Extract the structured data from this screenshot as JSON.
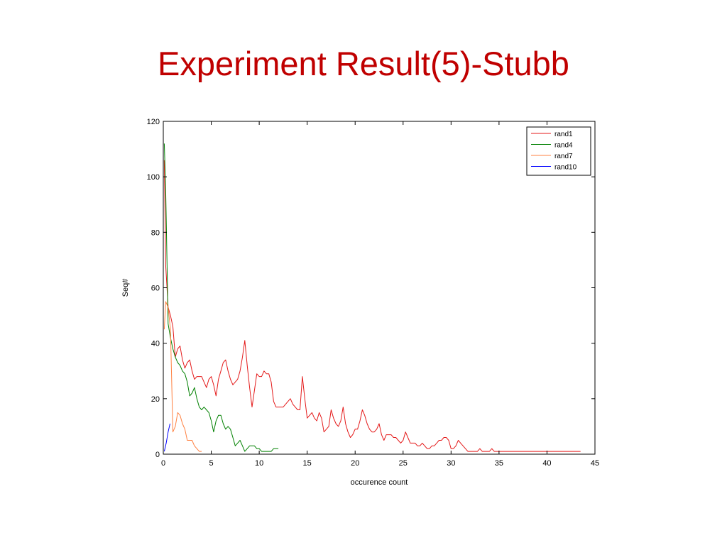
{
  "slide": {
    "title": "Experiment Result(5)-Stubb"
  },
  "chart_data": {
    "type": "line",
    "xlabel": "occurence count",
    "ylabel": "Seq#",
    "xlim": [
      0,
      45
    ],
    "ylim": [
      0,
      120
    ],
    "xticks": [
      "0",
      "5",
      "10",
      "15",
      "20",
      "25",
      "30",
      "35",
      "40",
      "45"
    ],
    "yticks": [
      "0",
      "20",
      "40",
      "60",
      "80",
      "100",
      "120"
    ],
    "grid": false,
    "legend_position": "top-right",
    "series": [
      {
        "name": "rand1",
        "color": "#e41a1a",
        "x": [
          0.1,
          0.25,
          0.5,
          0.75,
          1.0,
          1.25,
          1.5,
          1.75,
          2.0,
          2.25,
          2.5,
          2.75,
          3.0,
          3.25,
          3.5,
          3.75,
          4.0,
          4.25,
          4.5,
          4.75,
          5.0,
          5.25,
          5.5,
          5.75,
          6.0,
          6.25,
          6.5,
          6.75,
          7.0,
          7.25,
          7.5,
          7.75,
          8.0,
          8.25,
          8.5,
          8.75,
          9.0,
          9.25,
          9.5,
          9.75,
          10.0,
          10.25,
          10.5,
          10.75,
          11.0,
          11.25,
          11.5,
          11.75,
          12.0,
          12.25,
          12.5,
          12.75,
          13.0,
          13.25,
          13.5,
          13.75,
          14.0,
          14.25,
          14.5,
          14.75,
          15.0,
          15.25,
          15.5,
          15.75,
          16.0,
          16.25,
          16.5,
          16.75,
          17.0,
          17.25,
          17.5,
          17.75,
          18.0,
          18.25,
          18.5,
          18.75,
          19.0,
          19.25,
          19.5,
          19.75,
          20.0,
          20.25,
          20.5,
          20.75,
          21.0,
          21.25,
          21.5,
          21.75,
          22.0,
          22.25,
          22.5,
          22.75,
          23.0,
          23.25,
          23.5,
          23.75,
          24.0,
          24.25,
          24.5,
          24.75,
          25.0,
          25.25,
          25.5,
          25.75,
          26.0,
          26.25,
          26.5,
          26.75,
          27.0,
          27.25,
          27.5,
          27.75,
          28.0,
          28.25,
          28.5,
          28.75,
          29.0,
          29.25,
          29.5,
          29.75,
          30.0,
          30.25,
          30.5,
          30.75,
          31.0,
          31.25,
          31.5,
          31.75,
          32.0,
          32.25,
          32.5,
          32.75,
          33.0,
          33.25,
          33.5,
          33.75,
          34.0,
          34.25,
          34.5,
          34.75,
          35.0,
          35.25,
          35.5,
          35.75,
          36.0,
          36.25,
          36.5,
          36.75,
          37.0,
          37.25,
          37.5,
          37.75,
          38.0,
          38.25,
          38.5,
          38.75,
          39.0,
          39.25,
          39.5,
          39.75,
          40.0,
          40.25,
          40.5,
          40.75,
          41.0,
          41.25,
          41.5,
          41.75,
          42.0,
          42.25,
          42.5,
          42.75,
          43.0,
          43.25,
          43.5
        ],
        "y": [
          106,
          68,
          53,
          50,
          46,
          35,
          38,
          39,
          34,
          31,
          33,
          34,
          30,
          27,
          28,
          28,
          28,
          26,
          24,
          27,
          28,
          25,
          21,
          27,
          30,
          33,
          34,
          30,
          27,
          25,
          26,
          27,
          30,
          35,
          41,
          32,
          24,
          17,
          23,
          29,
          28,
          28,
          30,
          29,
          29,
          26,
          19,
          17,
          17,
          17,
          17,
          18,
          19,
          20,
          18,
          17,
          16,
          16,
          28,
          20,
          13,
          14,
          15,
          13,
          12,
          15,
          13,
          8,
          9,
          10,
          16,
          13,
          11,
          10,
          12,
          17,
          11,
          8,
          6,
          7,
          9,
          9,
          12,
          16,
          14,
          11,
          9,
          8,
          8,
          9,
          11,
          7,
          5,
          7,
          7,
          7,
          6,
          6,
          5,
          4,
          5,
          8,
          6,
          4,
          4,
          4,
          3,
          3,
          4,
          3,
          2,
          2,
          3,
          3,
          4,
          5,
          5,
          6,
          6,
          5,
          2,
          2,
          3,
          5,
          4,
          3,
          2,
          1,
          1,
          1,
          1,
          1,
          2,
          1,
          1,
          1,
          1,
          2,
          1,
          1,
          1,
          1,
          1,
          1,
          1,
          1,
          1,
          1,
          1,
          1,
          1,
          1,
          1,
          1,
          1,
          1,
          1,
          1,
          1,
          1,
          1,
          1,
          1,
          1,
          1,
          1,
          1,
          1,
          1,
          1,
          1,
          1,
          1,
          1,
          1
        ]
      },
      {
        "name": "rand4",
        "color": "#008000",
        "x": [
          0.1,
          0.25,
          0.5,
          0.75,
          1.0,
          1.25,
          1.5,
          1.75,
          2.0,
          2.25,
          2.5,
          2.75,
          3.0,
          3.25,
          3.5,
          3.75,
          4.0,
          4.25,
          4.5,
          4.75,
          5.0,
          5.25,
          5.5,
          5.75,
          6.0,
          6.25,
          6.5,
          6.75,
          7.0,
          7.25,
          7.5,
          7.75,
          8.0,
          8.25,
          8.5,
          8.75,
          9.0,
          9.25,
          9.5,
          9.75,
          10.0,
          10.25,
          10.5,
          10.75,
          11.0,
          11.25,
          11.5,
          11.75,
          12.0
        ],
        "y": [
          112,
          95,
          47,
          42,
          38,
          35,
          33,
          32,
          30,
          29,
          26,
          21,
          22,
          24,
          20,
          17,
          16,
          17,
          16,
          15,
          12,
          8,
          12,
          14,
          14,
          11,
          9,
          10,
          9,
          6,
          3,
          4,
          5,
          3,
          1,
          2,
          3,
          3,
          3,
          2,
          2,
          1,
          1,
          1,
          1,
          1,
          2,
          2,
          2
        ]
      },
      {
        "name": "rand7",
        "color": "#ff8040",
        "x": [
          0.1,
          0.25,
          0.5,
          0.75,
          1.0,
          1.25,
          1.5,
          1.75,
          2.0,
          2.25,
          2.5,
          2.75,
          3.0,
          3.25,
          3.5,
          3.75,
          4.0
        ],
        "y": [
          45,
          55,
          53,
          45,
          8,
          10,
          15,
          14,
          11,
          9,
          5,
          5,
          5,
          3,
          2,
          1,
          1
        ]
      },
      {
        "name": "rand10",
        "color": "#0000ff",
        "x": [
          0.1,
          0.3,
          0.5,
          0.7
        ],
        "y": [
          1,
          4,
          8,
          11
        ]
      }
    ]
  }
}
